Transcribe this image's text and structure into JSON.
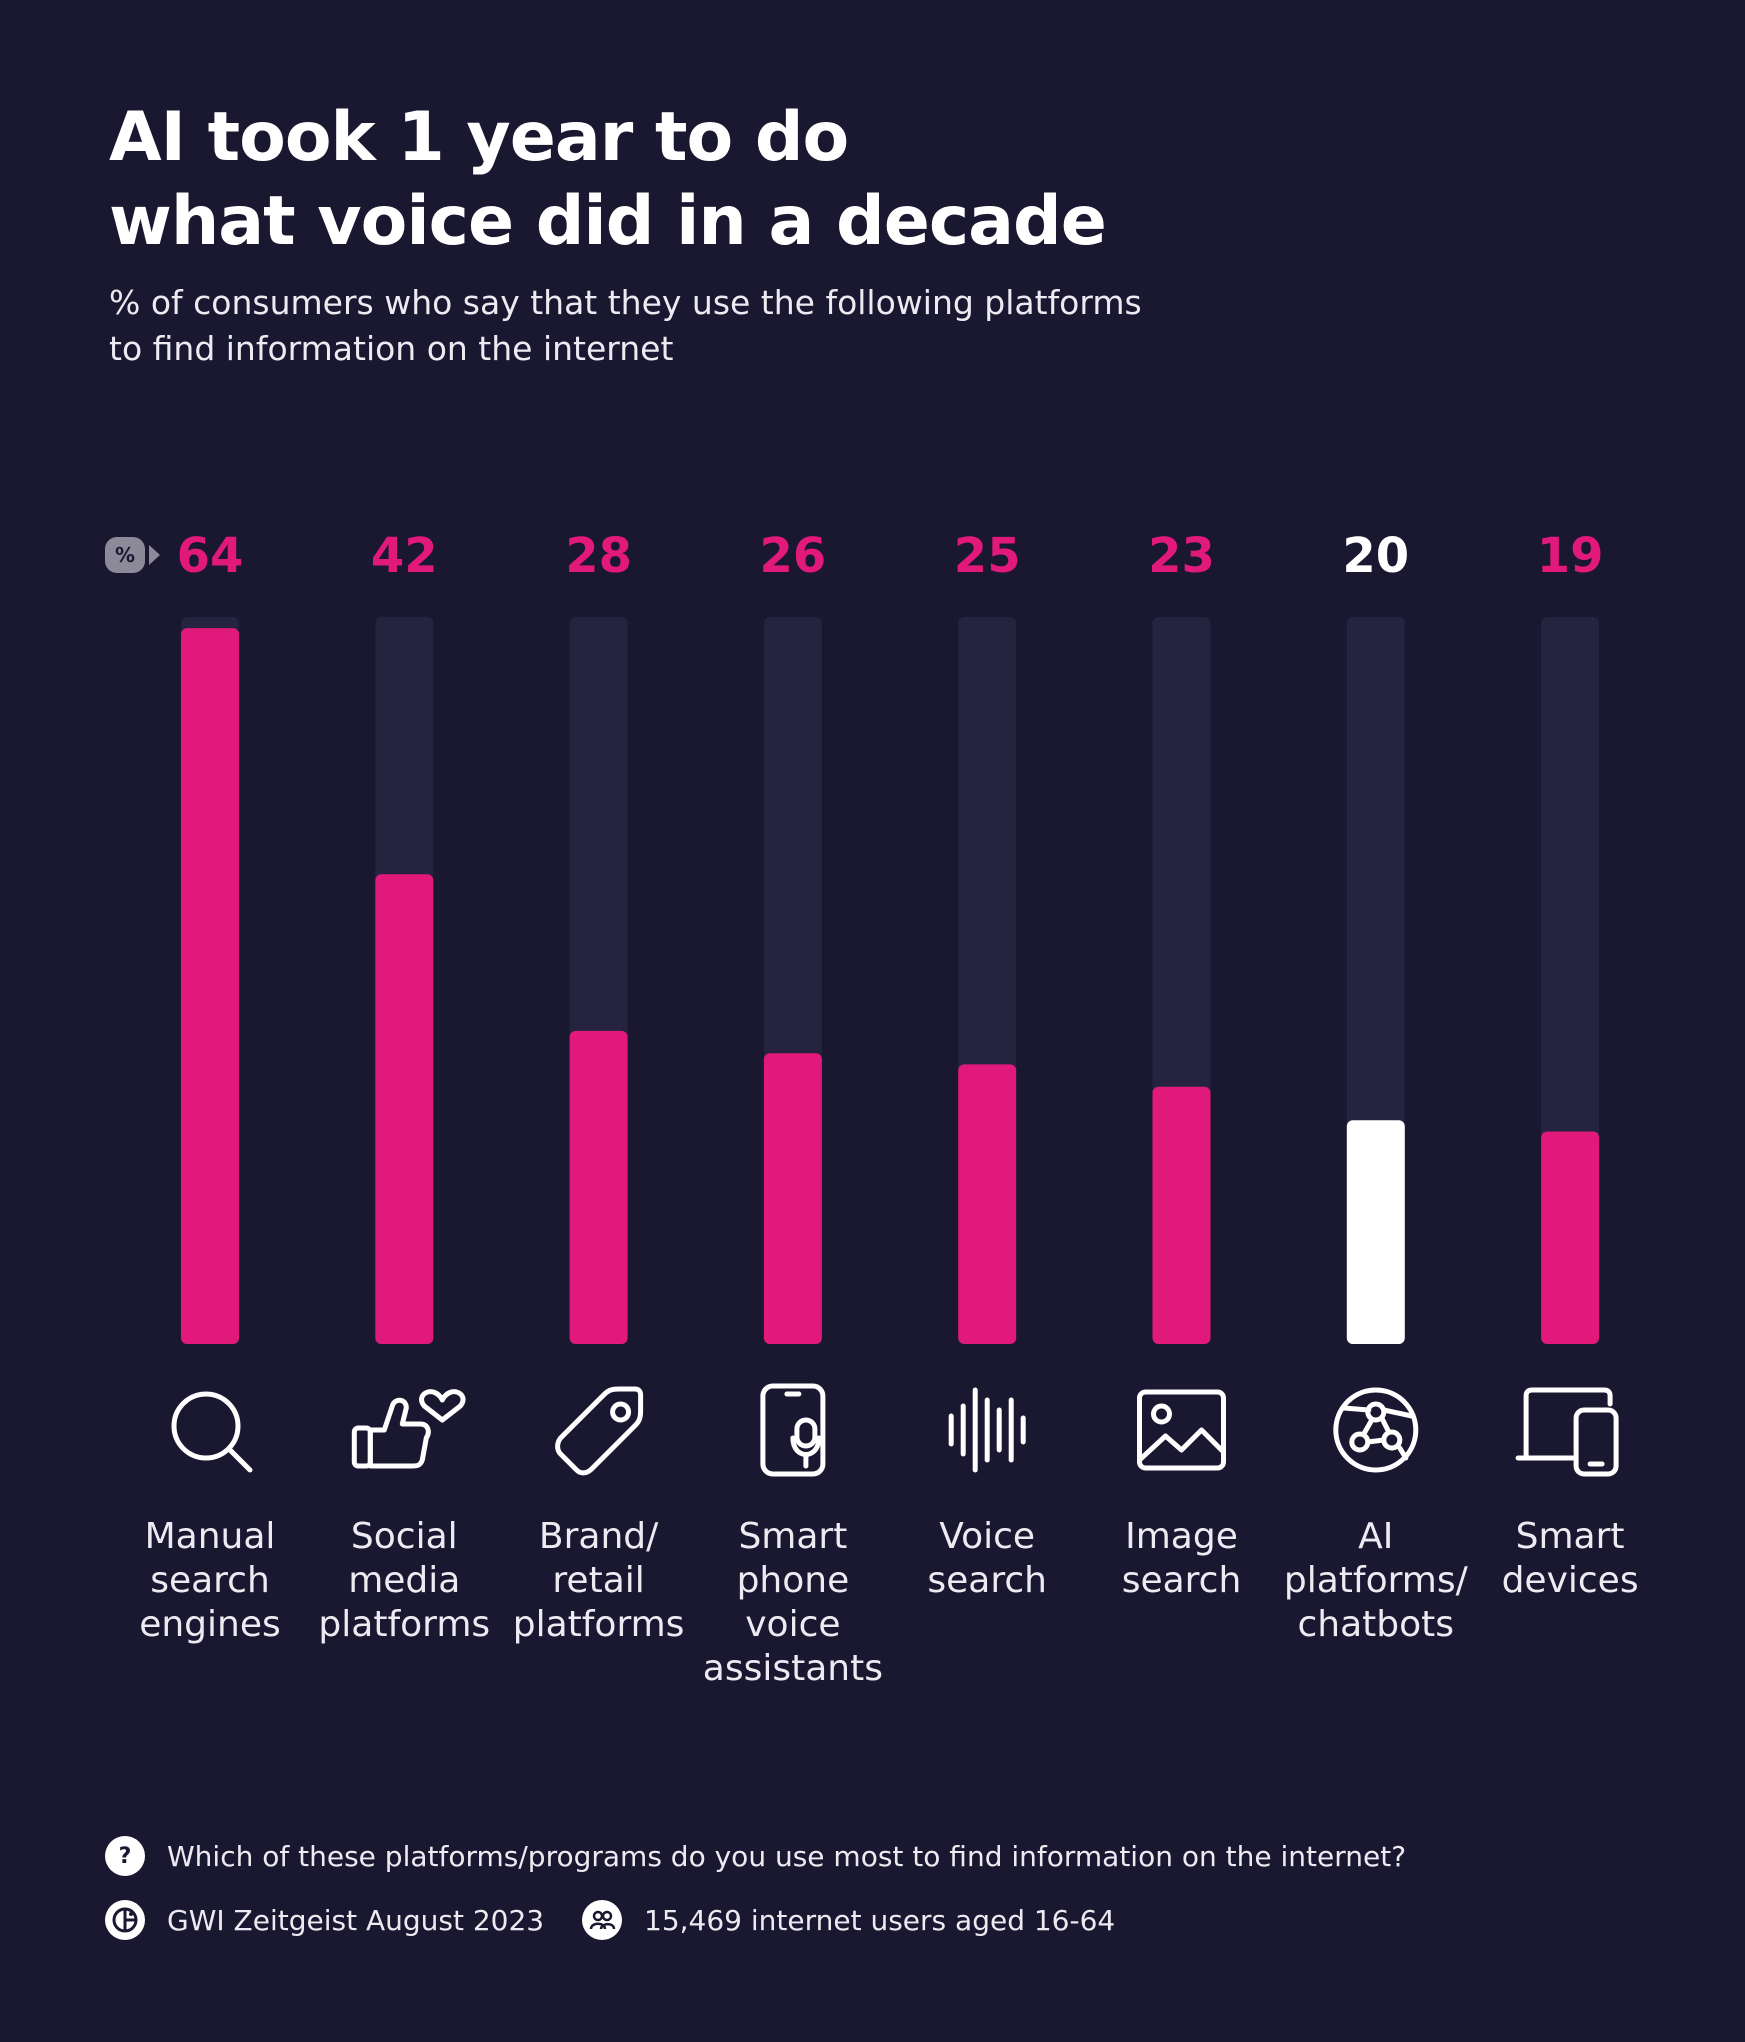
{
  "header": {
    "title_line1": "AI took 1 year to do",
    "title_line2": "what voice did in a decade",
    "subtitle_line1": "% of consumers who say that they use the following platforms",
    "subtitle_line2": "to find information on the internet"
  },
  "unit_badge": "%",
  "colors": {
    "background": "#1a1730",
    "track": "#25233f",
    "accent": "#e0197a",
    "highlight": "#ffffff"
  },
  "chart_data": {
    "type": "bar",
    "title": "AI took 1 year to do what voice did in a decade",
    "subtitle": "% of consumers who say that they use the following platforms to find information on the internet",
    "unit": "%",
    "ylim": [
      0,
      65
    ],
    "grid": false,
    "categories": [
      [
        "Manual",
        "search",
        "engines"
      ],
      [
        "Social",
        "media",
        "platforms"
      ],
      [
        "Brand/",
        "retail",
        "platforms"
      ],
      [
        "Smart",
        "phone",
        "voice",
        "assistants"
      ],
      [
        "Voice",
        "search"
      ],
      [
        "Image",
        "search"
      ],
      [
        "AI",
        "platforms/",
        "chatbots"
      ],
      [
        "Smart",
        "devices"
      ]
    ],
    "values": [
      64,
      42,
      28,
      26,
      25,
      23,
      20,
      19
    ],
    "icons": [
      "search-icon",
      "thumbs-up-heart-icon",
      "price-tag-icon",
      "smartphone-microphone-icon",
      "sound-wave-icon",
      "image-icon",
      "ai-network-icon",
      "devices-icon"
    ],
    "highlight_index": 6
  },
  "footer": {
    "question": "Which of these platforms/programs do you use most to find information on the internet?",
    "question_icon": "?",
    "source": "GWI Zeitgeist August 2023",
    "sample": "15,469 internet users aged 16-64"
  }
}
